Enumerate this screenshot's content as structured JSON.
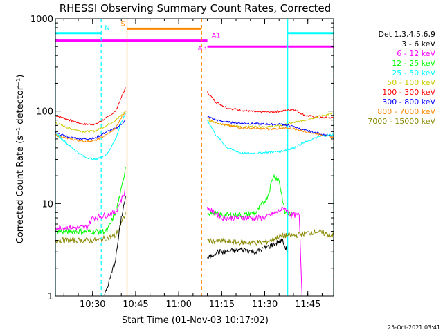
{
  "chart_data": {
    "type": "line",
    "title": "RHESSI Observing Summary Count Rates, Corrected",
    "xlabel": "Start Time (01-Nov-03 10:17:02)",
    "ylabel": "Corrected Count Rate (s⁻¹ detector⁻¹)",
    "x_ticks": [
      "10:30",
      "10:45",
      "11:00",
      "11:15",
      "11:30",
      "11:45"
    ],
    "y_ticks": [
      "1",
      "10",
      "100",
      "1000"
    ],
    "y_scale": "log",
    "ylim": [
      1,
      1000
    ],
    "xlim": [
      "10:17:02",
      "11:54:00"
    ],
    "footer": "25-Oct-2021 03:41",
    "legend": {
      "placement": "top-right",
      "header": "Det 1,3,4,5,6,9",
      "entries": [
        {
          "label": "3 - 6 keV",
          "color": "#000000"
        },
        {
          "label": "6 - 12 keV",
          "color": "#ff00ff"
        },
        {
          "label": "12 - 25 keV",
          "color": "#00ff00"
        },
        {
          "label": "25 - 50 keV",
          "color": "#00ffff"
        },
        {
          "label": "50 - 100 keV",
          "color": "#cccc00"
        },
        {
          "label": "100 - 300 keV",
          "color": "#ff0000"
        },
        {
          "label": "300 - 800 keV",
          "color": "#0000ff"
        },
        {
          "label": "800 - 7000 keV",
          "color": "#ff8800"
        },
        {
          "label": "7000 - 15000 keV",
          "color": "#888800"
        }
      ]
    },
    "flags": [
      {
        "label": "N",
        "color": "#00ffff",
        "y_level": 700,
        "spans": [
          [
            "10:17:02",
            "10:33:00"
          ],
          [
            "11:38:00",
            "11:54:00"
          ]
        ]
      },
      {
        "label": "S",
        "color": "#ff8800",
        "y_level": 780,
        "spans": [
          [
            "10:42:00",
            "11:08:00"
          ]
        ]
      },
      {
        "label": "A1",
        "color": "#ff00ff",
        "y_level": 580,
        "spans": [
          [
            "10:17:02",
            "11:10:00"
          ]
        ]
      },
      {
        "label": "A3",
        "color": "#ff00ff",
        "y_level": 500,
        "spans": [
          [
            "11:10:00",
            "11:54:00"
          ]
        ]
      }
    ],
    "vlines": [
      {
        "time": "10:17:02",
        "color": "#00ffff",
        "style": "solid"
      },
      {
        "time": "10:33:00",
        "color": "#00ffff",
        "style": "dashed"
      },
      {
        "time": "10:42:00",
        "color": "#ff8800",
        "style": "solid"
      },
      {
        "time": "11:08:00",
        "color": "#ff8800",
        "style": "dashed"
      },
      {
        "time": "11:38:00",
        "color": "#00ffff",
        "style": "solid"
      },
      {
        "time": "11:54:00",
        "color": "#00ffff",
        "style": "dashed"
      }
    ],
    "series": [
      {
        "color": "#ff0000",
        "segments": [
          [
            [
              "10:17:02",
              90
            ],
            [
              "10:22:00",
              80
            ],
            [
              "10:27:00",
              72
            ],
            [
              "10:31:00",
              72
            ],
            [
              "10:35:00",
              85
            ],
            [
              "10:38:00",
              100
            ],
            [
              "10:40:00",
              140
            ],
            [
              "10:41:30",
              180
            ]
          ],
          [
            [
              "11:10:00",
              160
            ],
            [
              "11:13:00",
              125
            ],
            [
              "11:17:00",
              108
            ],
            [
              "11:22:00",
              102
            ],
            [
              "11:27:00",
              98
            ],
            [
              "11:32:00",
              98
            ],
            [
              "11:36:00",
              100
            ],
            [
              "11:40:00",
              105
            ],
            [
              "11:44:00",
              90
            ],
            [
              "11:49:00",
              85
            ],
            [
              "11:54:00",
              85
            ]
          ]
        ]
      },
      {
        "color": "#cccc00",
        "segments": [
          [
            [
              "10:17:02",
              75
            ],
            [
              "10:22:00",
              65
            ],
            [
              "10:27:00",
              60
            ],
            [
              "10:31:00",
              61
            ],
            [
              "10:35:00",
              70
            ],
            [
              "10:38:00",
              80
            ],
            [
              "10:40:00",
              90
            ],
            [
              "10:41:30",
              100
            ]
          ],
          [
            [
              "11:10:00",
              80
            ],
            [
              "11:13:00",
              75
            ],
            [
              "11:17:00",
              70
            ],
            [
              "11:22:00",
              68
            ],
            [
              "11:27:00",
              68
            ],
            [
              "11:32:00",
              68
            ],
            [
              "11:36:00",
              70
            ],
            [
              "11:40:00",
              75
            ],
            [
              "11:44:00",
              80
            ],
            [
              "11:49:00",
              88
            ],
            [
              "11:54:00",
              95
            ]
          ]
        ]
      },
      {
        "color": "#0000ff",
        "segments": [
          [
            [
              "10:17:02",
              58
            ],
            [
              "10:22:00",
              52
            ],
            [
              "10:27:00",
              50
            ],
            [
              "10:31:00",
              51
            ],
            [
              "10:35:00",
              60
            ],
            [
              "10:38:00",
              65
            ],
            [
              "10:40:00",
              72
            ],
            [
              "10:41:30",
              80
            ]
          ],
          [
            [
              "11:10:00",
              88
            ],
            [
              "11:13:00",
              80
            ],
            [
              "11:17:00",
              76
            ],
            [
              "11:22:00",
              74
            ],
            [
              "11:27:00",
              73
            ],
            [
              "11:32:00",
              72
            ],
            [
              "11:36:00",
              72
            ],
            [
              "11:40:00",
              68
            ],
            [
              "11:44:00",
              62
            ],
            [
              "11:49:00",
              57
            ],
            [
              "11:54:00",
              53
            ]
          ]
        ]
      },
      {
        "color": "#ff8800",
        "segments": [
          [
            [
              "10:17:02",
              55
            ],
            [
              "10:22:00",
              50
            ],
            [
              "10:27:00",
              47
            ],
            [
              "10:31:00",
              48
            ],
            [
              "10:35:00",
              56
            ],
            [
              "10:38:00",
              65
            ],
            [
              "10:40:00",
              85
            ],
            [
              "10:41:30",
              100
            ]
          ],
          [
            [
              "11:10:00",
              85
            ],
            [
              "11:13:00",
              75
            ],
            [
              "11:17:00",
              70
            ],
            [
              "11:22:00",
              66
            ],
            [
              "11:27:00",
              65
            ],
            [
              "11:32:00",
              64
            ],
            [
              "11:36:00",
              65
            ],
            [
              "11:40:00",
              65
            ],
            [
              "11:44:00",
              60
            ],
            [
              "11:49:00",
              56
            ],
            [
              "11:54:00",
              52
            ]
          ]
        ]
      },
      {
        "color": "#00ffff",
        "segments": [
          [
            [
              "10:17:02",
              58
            ],
            [
              "10:22:00",
              42
            ],
            [
              "10:27:00",
              32
            ],
            [
              "10:31:00",
              30
            ],
            [
              "10:35:00",
              34
            ],
            [
              "10:38:00",
              50
            ],
            [
              "10:40:00",
              75
            ],
            [
              "10:41:30",
              95
            ]
          ],
          [
            [
              "11:10:00",
              80
            ],
            [
              "11:13:00",
              55
            ],
            [
              "11:17:00",
              40
            ],
            [
              "11:22:00",
              35
            ],
            [
              "11:27:00",
              35
            ],
            [
              "11:32:00",
              36
            ],
            [
              "11:36:00",
              37
            ],
            [
              "11:40:00",
              40
            ],
            [
              "11:44:00",
              46
            ],
            [
              "11:49:00",
              53
            ],
            [
              "11:54:00",
              56
            ]
          ]
        ]
      },
      {
        "color": "#00ff00",
        "segments": [
          [
            [
              "10:17:02",
              5
            ],
            [
              "10:30:00",
              5
            ],
            [
              "10:35:00",
              5
            ],
            [
              "10:38:00",
              8
            ],
            [
              "10:40:00",
              14
            ],
            [
              "10:41:30",
              25
            ]
          ],
          [
            [
              "11:10:00",
              8
            ],
            [
              "11:15:00",
              7.5
            ],
            [
              "11:22:00",
              7.5
            ],
            [
              "11:27:00",
              8
            ],
            [
              "11:31:00",
              12
            ],
            [
              "11:33:00",
              20
            ],
            [
              "11:35:00",
              18
            ],
            [
              "11:37:00",
              8
            ],
            [
              "11:40:00",
              7.5
            ]
          ]
        ]
      },
      {
        "color": "#ff00ff",
        "segments": [
          [
            [
              "10:17:02",
              5.5
            ],
            [
              "10:28:00",
              5.5
            ],
            [
              "10:30:00",
              7
            ],
            [
              "10:35:00",
              7.5
            ],
            [
              "10:38:00",
              8
            ],
            [
              "10:40:00",
              11
            ],
            [
              "10:41:30",
              14
            ]
          ],
          [
            [
              "11:10:00",
              9
            ],
            [
              "11:15:00",
              7
            ],
            [
              "11:22:00",
              7
            ],
            [
              "11:30:00",
              7
            ],
            [
              "11:34:00",
              8
            ],
            [
              "11:37:00",
              9
            ],
            [
              "11:39:00",
              7.5
            ],
            [
              "11:42:00",
              7.5
            ],
            [
              "11:43:00",
              1
            ]
          ]
        ]
      },
      {
        "color": "#888800",
        "segments": [
          [
            [
              "10:17:02",
              4
            ],
            [
              "10:25:00",
              4
            ],
            [
              "10:32:00",
              4
            ],
            [
              "10:38:00",
              4.5
            ],
            [
              "10:40:00",
              6
            ],
            [
              "10:41:30",
              8
            ]
          ],
          [
            [
              "11:10:00",
              4
            ],
            [
              "11:20:00",
              3.8
            ],
            [
              "11:30:00",
              3.8
            ],
            [
              "11:36:00",
              4.5
            ],
            [
              "11:40:00",
              4.5
            ],
            [
              "11:48:00",
              5
            ],
            [
              "11:54:00",
              4.5
            ]
          ]
        ]
      },
      {
        "color": "#000000",
        "segments": [
          [
            [
              "10:34:00",
              1
            ],
            [
              "10:36:00",
              1.5
            ],
            [
              "10:38:00",
              2.5
            ],
            [
              "10:40:00",
              7
            ],
            [
              "10:41:30",
              12
            ]
          ],
          [
            [
              "11:10:00",
              2.5
            ],
            [
              "11:13:00",
              3
            ],
            [
              "11:17:00",
              3
            ],
            [
              "11:22:00",
              3.2
            ],
            [
              "11:27:00",
              3
            ],
            [
              "11:32:00",
              3.5
            ],
            [
              "11:36:00",
              4
            ],
            [
              "11:38:00",
              3
            ]
          ]
        ]
      }
    ]
  }
}
